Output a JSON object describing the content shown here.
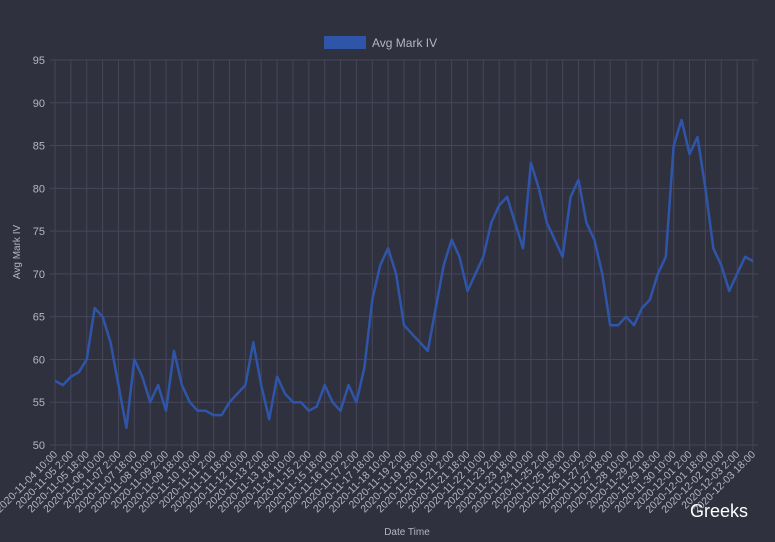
{
  "chart_data": {
    "type": "line",
    "y_label": "Avg Mark IV",
    "x_label": "Date Time",
    "watermark": "Greeks",
    "grid": true,
    "legend": "top",
    "categories": [
      "2020-11-04 10:00",
      null,
      "2020-11-05 2:00",
      null,
      "2020-11-05 18:00",
      null,
      "2020-11-06 10:00",
      null,
      "2020-11-07 2:00",
      null,
      "2020-11-07 18:00",
      null,
      "2020-11-08 10:00",
      null,
      "2020-11-09 2:00",
      null,
      "2020-11-09 18:00",
      null,
      "2020-11-10 10:00",
      null,
      "2020-11-11 2:00",
      null,
      "2020-11-11 18:00",
      null,
      "2020-11-12 10:00",
      null,
      "2020-11-13 2:00",
      null,
      "2020-11-13 18:00",
      null,
      "2020-11-14 10:00",
      null,
      "2020-11-15 2:00",
      null,
      "2020-11-15 18:00",
      null,
      "2020-11-16 10:00",
      null,
      "2020-11-17 2:00",
      null,
      "2020-11-17 18:00",
      null,
      "2020-11-18 10:00",
      null,
      "2020-11-19 2:00",
      null,
      "2020-11-19 18:00",
      null,
      "2020-11-20 10:00",
      null,
      "2020-11-21 2:00",
      null,
      "2020-11-21 18:00",
      null,
      "2020-11-22 10:00",
      null,
      "2020-11-23 2:00",
      null,
      "2020-11-23 18:00",
      null,
      "2020-11-24 10:00",
      null,
      "2020-11-25 2:00",
      null,
      "2020-11-25 18:00",
      null,
      "2020-11-26 10:00",
      null,
      "2020-11-27 2:00",
      null,
      "2020-11-27 18:00",
      null,
      "2020-11-28 10:00",
      null,
      "2020-11-29 2:00",
      null,
      "2020-11-29 18:00",
      null,
      "2020-11-30 10:00",
      null,
      "2020-12-01 2:00",
      null,
      "2020-12-01 18:00",
      null,
      "2020-12-02 10:00",
      null,
      "2020-12-03 2:00",
      null,
      "2020-12-03 18:00"
    ],
    "series": [
      {
        "name": "Avg Mark IV",
        "color": "#2f55a9",
        "values": [
          57.5,
          57,
          58,
          58.5,
          60,
          66,
          65,
          62,
          57,
          52,
          60,
          58,
          55,
          57,
          54,
          61,
          57,
          55,
          54,
          54,
          53.5,
          53.5,
          55,
          56,
          57,
          62,
          57,
          53,
          58,
          56,
          55,
          55,
          54,
          54.5,
          57,
          55,
          54,
          57,
          55,
          59,
          67,
          71,
          73,
          70,
          64,
          63,
          62,
          61,
          66,
          71,
          74,
          72,
          68,
          70,
          72,
          76,
          78,
          79,
          76,
          73,
          83,
          80,
          76,
          74,
          72,
          79,
          81,
          76,
          74,
          70,
          64,
          64,
          65,
          64,
          66,
          67,
          70,
          72,
          85,
          88,
          84,
          86,
          80,
          73,
          71,
          68,
          70,
          72,
          71.5
        ]
      }
    ],
    "ylim": [
      50,
      95
    ],
    "yticks": [
      50,
      55,
      60,
      65,
      70,
      75,
      80,
      85,
      90,
      95
    ]
  }
}
